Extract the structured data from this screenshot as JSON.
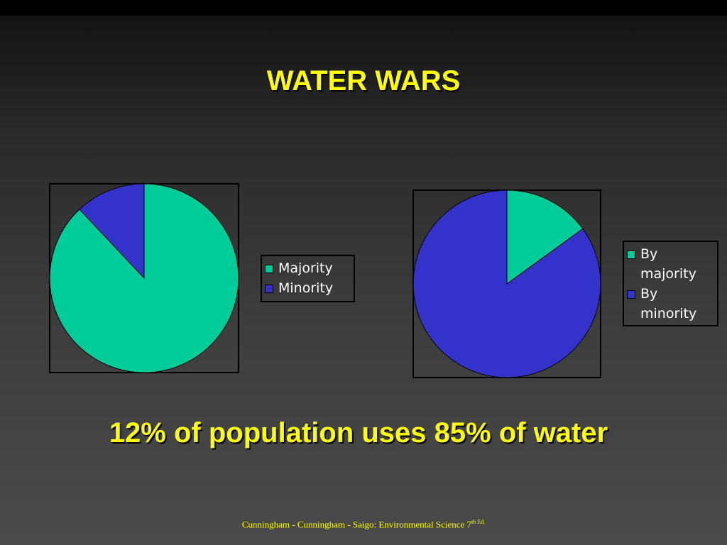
{
  "slide": {
    "title": "WATER WARS",
    "caption": "12% of population uses 85% of water",
    "credit_main": "Cunningham - Cunningham - Saigo: Environmental Science 7",
    "credit_sup": "th Ed."
  },
  "colors": {
    "title_text": "#ffff00",
    "majority": "#00cc99",
    "minority": "#3333cc",
    "legend_text": "#ffffff"
  },
  "chart_data": [
    {
      "type": "pie",
      "title": "",
      "categories": [
        "Majority",
        "Minority"
      ],
      "values": [
        88,
        12
      ],
      "colors": [
        "#00cc99",
        "#3333cc"
      ],
      "start_angle_deg": 0,
      "direction": "clockwise",
      "legend_position": "right"
    },
    {
      "type": "pie",
      "title": "",
      "categories": [
        "By majority",
        "By minority"
      ],
      "values": [
        15,
        85
      ],
      "colors": [
        "#00cc99",
        "#3333cc"
      ],
      "start_angle_deg": 0,
      "direction": "clockwise",
      "legend_position": "right"
    }
  ],
  "legend1": {
    "items": [
      "Majority",
      "Minority"
    ]
  },
  "legend2": {
    "items": [
      "By majority",
      "By minority"
    ]
  }
}
